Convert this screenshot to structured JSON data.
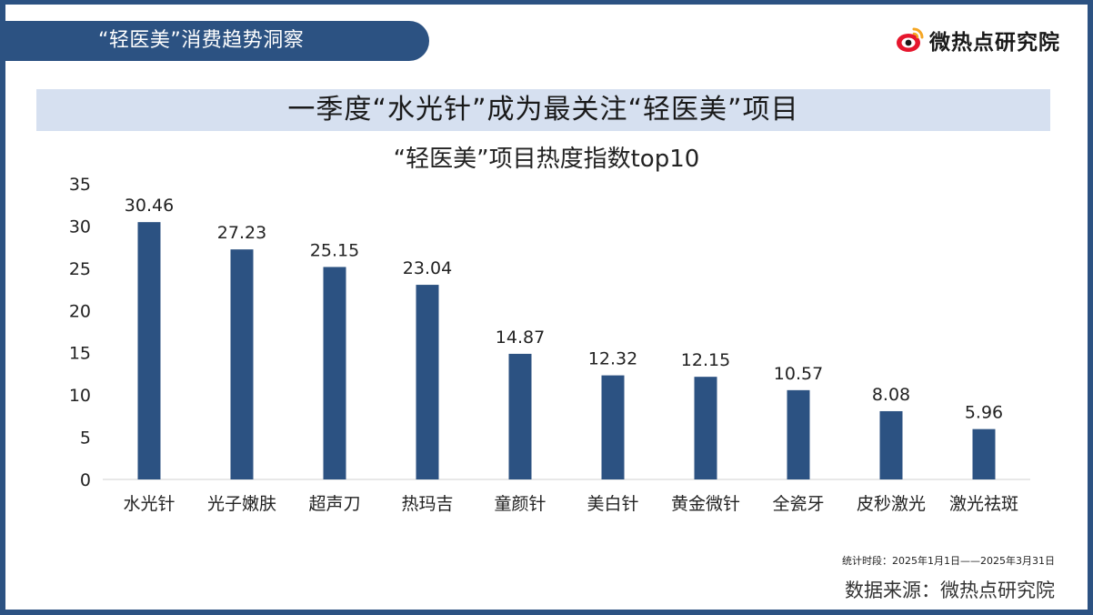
{
  "header": {
    "section_title": "“轻医美”消费趋势洞察",
    "brand_name": "微热点研究院",
    "brand_logo_icon": "weibo-eye-logo-icon"
  },
  "banner": {
    "headline": "一季度“水光针”成为最关注“轻医美”项目"
  },
  "colors": {
    "accent": "#2c5282",
    "banner_bg": "#d6e0f0",
    "bar": "#2c5282"
  },
  "chart_data": {
    "type": "bar",
    "title": "“轻医美”项目热度指数top10",
    "categories": [
      "水光针",
      "光子嫩肤",
      "超声刀",
      "热玛吉",
      "童颜针",
      "美白针",
      "黄金微针",
      "全瓷牙",
      "皮秒激光",
      "激光祛斑"
    ],
    "values": [
      30.46,
      27.23,
      25.15,
      23.04,
      14.87,
      12.32,
      12.15,
      10.57,
      8.08,
      5.96
    ],
    "value_labels": [
      "30.46",
      "27.23",
      "25.15",
      "23.04",
      "14.87",
      "12.32",
      "12.15",
      "10.57",
      "8.08",
      "5.96"
    ],
    "ylim": [
      0,
      35
    ],
    "yticks": [
      0,
      5,
      10,
      15,
      20,
      25,
      30,
      35
    ],
    "xlabel": "",
    "ylabel": "",
    "grid": false,
    "legend": "none",
    "bar_color": "#2c5282"
  },
  "footer": {
    "period_note": "统计时段：2025年1月1日——2025年3月31日",
    "source": "数据来源：微热点研究院"
  }
}
